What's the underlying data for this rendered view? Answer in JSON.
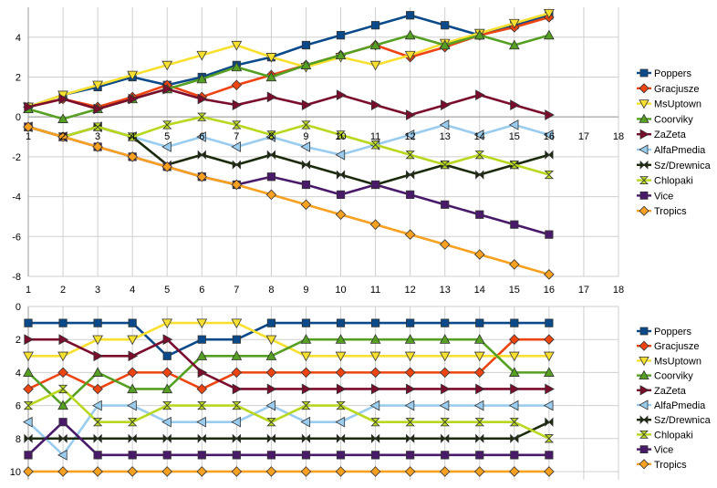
{
  "chart_data": [
    {
      "type": "line",
      "title": "",
      "xlabel": "",
      "ylabel": "",
      "x_ticks": [
        "1",
        "2",
        "3",
        "4",
        "5",
        "6",
        "7",
        "8",
        "9",
        "10",
        "11",
        "12",
        "13",
        "14",
        "15",
        "16",
        "17",
        "18"
      ],
      "y_ticks": [
        "-8",
        "-6",
        "-4",
        "-2",
        "0",
        "2",
        "4"
      ],
      "xlim": [
        1,
        18
      ],
      "ylim": [
        -8,
        5.5
      ],
      "grid": true,
      "legend_position": "right",
      "series": [
        {
          "name": "Poppers",
          "color": "#0a4a8a",
          "marker": "square",
          "x": [
            1,
            2,
            3,
            4,
            5,
            6,
            7,
            8,
            9,
            10,
            11,
            12,
            13,
            14,
            15,
            16
          ],
          "values": [
            0.5,
            1.1,
            1.5,
            2.0,
            1.6,
            2.0,
            2.6,
            3.0,
            3.6,
            4.1,
            4.6,
            5.1,
            4.6,
            4.1,
            4.6,
            5.1
          ]
        },
        {
          "name": "Gracjusze",
          "color": "#ee4411",
          "marker": "diamond",
          "x": [
            1,
            2,
            3,
            4,
            5,
            6,
            7,
            8,
            9,
            10,
            11,
            12,
            13,
            14,
            15,
            16
          ],
          "values": [
            0.5,
            0.9,
            0.5,
            1.0,
            1.6,
            1.0,
            1.6,
            2.1,
            2.6,
            3.1,
            3.6,
            3.0,
            3.5,
            4.1,
            4.5,
            5.0
          ]
        },
        {
          "name": "MsUptown",
          "color": "#f8e030",
          "marker": "triangle-down",
          "x": [
            1,
            2,
            3,
            4,
            5,
            6,
            7,
            8,
            9,
            10,
            11,
            12,
            13,
            14,
            15,
            16
          ],
          "values": [
            0.5,
            1.1,
            1.6,
            2.1,
            2.6,
            3.1,
            3.6,
            3.0,
            2.5,
            3.0,
            2.6,
            3.1,
            3.7,
            4.2,
            4.7,
            5.2
          ]
        },
        {
          "name": "Coorviky",
          "color": "#55a022",
          "marker": "triangle-up",
          "x": [
            1,
            2,
            3,
            4,
            5,
            6,
            7,
            8,
            9,
            10,
            11,
            12,
            13,
            14,
            15,
            16
          ],
          "values": [
            0.4,
            -0.1,
            0.4,
            0.9,
            1.4,
            1.9,
            2.5,
            2.0,
            2.6,
            3.1,
            3.6,
            4.1,
            3.6,
            4.1,
            3.6,
            4.1
          ]
        },
        {
          "name": "ZaZeta",
          "color": "#7a0c2c",
          "marker": "triangle-right",
          "x": [
            1,
            2,
            3,
            4,
            5,
            6,
            7,
            8,
            9,
            10,
            11,
            12,
            13,
            14,
            15,
            16
          ],
          "values": [
            0.5,
            0.9,
            0.4,
            0.9,
            1.4,
            0.9,
            0.6,
            1.0,
            0.6,
            1.1,
            0.6,
            0.1,
            0.6,
            1.1,
            0.6,
            0.1
          ]
        },
        {
          "name": "AlfaPmedia",
          "color": "#99ccee",
          "marker": "triangle-left",
          "x": [
            1,
            2,
            3,
            4,
            5,
            6,
            7,
            8,
            9,
            10,
            11,
            12,
            13,
            14,
            15,
            16
          ],
          "values": [
            -0.5,
            -1.0,
            -0.5,
            -1.0,
            -1.5,
            -1.0,
            -1.5,
            -1.0,
            -1.5,
            -1.9,
            -1.4,
            -0.9,
            -0.4,
            -0.9,
            -0.4,
            -0.9
          ]
        },
        {
          "name": "Sz/Drewnica",
          "color": "#1a2a0a",
          "marker": "bowtie",
          "x": [
            1,
            2,
            3,
            4,
            5,
            6,
            7,
            8,
            9,
            10,
            11,
            12,
            13,
            14,
            15,
            16
          ],
          "values": [
            -0.5,
            -1.0,
            -0.5,
            -1.0,
            -2.4,
            -1.9,
            -2.4,
            -1.9,
            -2.4,
            -2.9,
            -3.4,
            -2.9,
            -2.4,
            -2.9,
            -2.4,
            -1.9
          ]
        },
        {
          "name": "Chlopaki",
          "color": "#b8d820",
          "marker": "hourglass",
          "x": [
            1,
            2,
            3,
            4,
            5,
            6,
            7,
            8,
            9,
            10,
            11,
            12,
            13,
            14,
            15,
            16
          ],
          "values": [
            -0.5,
            -1.0,
            -0.5,
            -1.0,
            -0.4,
            0.0,
            -0.4,
            -0.9,
            -0.4,
            -0.9,
            -1.4,
            -1.9,
            -2.4,
            -1.9,
            -2.4,
            -2.9
          ]
        },
        {
          "name": "Vice",
          "color": "#4a1a6a",
          "marker": "square",
          "x": [
            1,
            2,
            3,
            4,
            5,
            6,
            7,
            8,
            9,
            10,
            11,
            12,
            13,
            14,
            15,
            16
          ],
          "values": [
            -0.5,
            -1.0,
            -1.5,
            -2.0,
            -2.5,
            -3.0,
            -3.4,
            -3.0,
            -3.4,
            -3.9,
            -3.4,
            -3.9,
            -4.4,
            -4.9,
            -5.4,
            -5.9
          ]
        },
        {
          "name": "Tropics",
          "color": "#f8a020",
          "marker": "diamond",
          "x": [
            1,
            2,
            3,
            4,
            5,
            6,
            7,
            8,
            9,
            10,
            11,
            12,
            13,
            14,
            15,
            16
          ],
          "values": [
            -0.5,
            -1.0,
            -1.5,
            -2.0,
            -2.5,
            -3.0,
            -3.4,
            -3.9,
            -4.4,
            -4.9,
            -5.4,
            -5.9,
            -6.4,
            -6.9,
            -7.4,
            -7.9
          ]
        }
      ]
    },
    {
      "type": "line",
      "title": "",
      "xlabel": "",
      "ylabel": "",
      "x_ticks": [
        "1",
        "2",
        "3",
        "4",
        "5",
        "6",
        "7",
        "8",
        "9",
        "10",
        "11",
        "12",
        "13",
        "14",
        "15",
        "16",
        "17",
        "18"
      ],
      "y_ticks": [
        "0",
        "2",
        "4",
        "6",
        "8",
        "10"
      ],
      "xlim": [
        1,
        18
      ],
      "ylim": [
        10.5,
        0
      ],
      "y_reversed": true,
      "grid": true,
      "legend_position": "right",
      "series": [
        {
          "name": "Poppers",
          "color": "#0a4a8a",
          "marker": "square",
          "x": [
            1,
            2,
            3,
            4,
            5,
            6,
            7,
            8,
            9,
            10,
            11,
            12,
            13,
            14,
            15,
            16
          ],
          "values": [
            1,
            1,
            1,
            1,
            3,
            2,
            2,
            1,
            1,
            1,
            1,
            1,
            1,
            1,
            1,
            1
          ]
        },
        {
          "name": "Gracjusze",
          "color": "#ee4411",
          "marker": "diamond",
          "x": [
            1,
            2,
            3,
            4,
            5,
            6,
            7,
            8,
            9,
            10,
            11,
            12,
            13,
            14,
            15,
            16
          ],
          "values": [
            5,
            4,
            5,
            4,
            4,
            5,
            4,
            4,
            4,
            4,
            4,
            4,
            4,
            4,
            2,
            2
          ]
        },
        {
          "name": "MsUptown",
          "color": "#f8e030",
          "marker": "triangle-down",
          "x": [
            1,
            2,
            3,
            4,
            5,
            6,
            7,
            8,
            9,
            10,
            11,
            12,
            13,
            14,
            15,
            16
          ],
          "values": [
            3,
            3,
            2,
            2,
            1,
            1,
            1,
            2,
            3,
            3,
            3,
            3,
            3,
            3,
            3,
            3
          ]
        },
        {
          "name": "Coorviky",
          "color": "#55a022",
          "marker": "triangle-up",
          "x": [
            1,
            2,
            3,
            4,
            5,
            6,
            7,
            8,
            9,
            10,
            11,
            12,
            13,
            14,
            15,
            16
          ],
          "values": [
            4,
            6,
            4,
            5,
            5,
            3,
            3,
            3,
            2,
            2,
            2,
            2,
            2,
            2,
            4,
            4
          ]
        },
        {
          "name": "ZaZeta",
          "color": "#7a0c2c",
          "marker": "triangle-right",
          "x": [
            1,
            2,
            3,
            4,
            5,
            6,
            7,
            8,
            9,
            10,
            11,
            12,
            13,
            14,
            15,
            16
          ],
          "values": [
            2,
            2,
            3,
            3,
            2,
            4,
            5,
            5,
            5,
            5,
            5,
            5,
            5,
            5,
            5,
            5
          ]
        },
        {
          "name": "AlfaPmedia",
          "color": "#99ccee",
          "marker": "triangle-left",
          "x": [
            1,
            2,
            3,
            4,
            5,
            6,
            7,
            8,
            9,
            10,
            11,
            12,
            13,
            14,
            15,
            16
          ],
          "values": [
            7,
            9,
            6,
            6,
            7,
            7,
            7,
            6,
            7,
            7,
            6,
            6,
            6,
            6,
            6,
            6
          ]
        },
        {
          "name": "Sz/Drewnica",
          "color": "#1a2a0a",
          "marker": "bowtie",
          "x": [
            1,
            2,
            3,
            4,
            5,
            6,
            7,
            8,
            9,
            10,
            11,
            12,
            13,
            14,
            15,
            16
          ],
          "values": [
            8,
            8,
            8,
            8,
            8,
            8,
            8,
            8,
            8,
            8,
            8,
            8,
            8,
            8,
            8,
            7
          ]
        },
        {
          "name": "Chlopaki",
          "color": "#b8d820",
          "marker": "hourglass",
          "x": [
            1,
            2,
            3,
            4,
            5,
            6,
            7,
            8,
            9,
            10,
            11,
            12,
            13,
            14,
            15,
            16
          ],
          "values": [
            6,
            5,
            7,
            7,
            6,
            6,
            6,
            7,
            6,
            6,
            7,
            7,
            7,
            7,
            7,
            8
          ]
        },
        {
          "name": "Vice",
          "color": "#4a1a6a",
          "marker": "square",
          "x": [
            1,
            2,
            3,
            4,
            5,
            6,
            7,
            8,
            9,
            10,
            11,
            12,
            13,
            14,
            15,
            16
          ],
          "values": [
            9,
            7,
            9,
            9,
            9,
            9,
            9,
            9,
            9,
            9,
            9,
            9,
            9,
            9,
            9,
            9
          ]
        },
        {
          "name": "Tropics",
          "color": "#f8a020",
          "marker": "diamond",
          "x": [
            1,
            2,
            3,
            4,
            5,
            6,
            7,
            8,
            9,
            10,
            11,
            12,
            13,
            14,
            15,
            16
          ],
          "values": [
            10,
            10,
            10,
            10,
            10,
            10,
            10,
            10,
            10,
            10,
            10,
            10,
            10,
            10,
            10,
            10
          ]
        }
      ]
    }
  ]
}
